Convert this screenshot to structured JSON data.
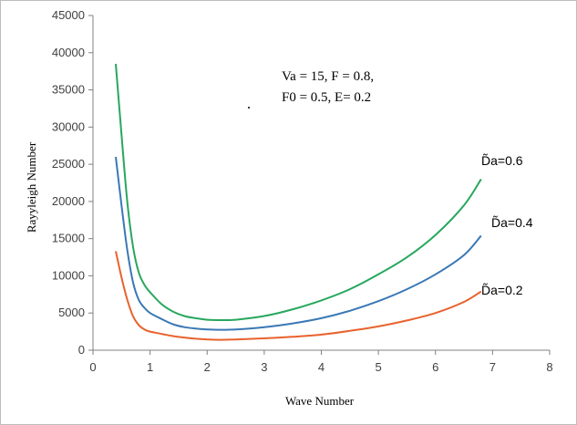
{
  "chart_data": {
    "type": "line",
    "xlabel": "Wave Number",
    "ylabel": "Rayyleigh Number",
    "xlim": [
      0,
      8
    ],
    "ylim": [
      0,
      45000
    ],
    "x_ticks": [
      0,
      1,
      2,
      3,
      4,
      5,
      6,
      7,
      8
    ],
    "y_ticks": [
      0,
      5000,
      10000,
      15000,
      20000,
      25000,
      30000,
      35000,
      40000,
      45000
    ],
    "grid": false,
    "legend": "none",
    "annotation_lines": [
      "Va = 15, F = 0.8,",
      "F0 = 0.5, E= 0.2"
    ],
    "series": [
      {
        "name": "D̃a=0.6",
        "color": "#27a75e",
        "x": [
          0.4,
          0.5,
          0.6,
          0.7,
          0.8,
          0.9,
          1.0,
          1.2,
          1.4,
          1.6,
          1.8,
          2.0,
          2.2,
          2.5,
          3.0,
          3.5,
          4.0,
          4.5,
          5.0,
          5.5,
          6.0,
          6.5,
          6.8
        ],
        "values": [
          38500,
          29000,
          20000,
          14000,
          10500,
          8800,
          7800,
          6200,
          5200,
          4600,
          4300,
          4100,
          4050,
          4100,
          4600,
          5500,
          6700,
          8200,
          10200,
          12500,
          15500,
          19500,
          23000
        ]
      },
      {
        "name": "D̃a=0.4",
        "color": "#3a78b5",
        "x": [
          0.4,
          0.5,
          0.6,
          0.7,
          0.8,
          0.9,
          1.0,
          1.2,
          1.4,
          1.6,
          1.8,
          2.0,
          2.2,
          2.5,
          3.0,
          3.5,
          4.0,
          4.5,
          5.0,
          5.5,
          6.0,
          6.5,
          6.8
        ],
        "values": [
          26000,
          19500,
          13500,
          9200,
          6800,
          5700,
          5000,
          4200,
          3500,
          3100,
          2900,
          2800,
          2750,
          2800,
          3100,
          3600,
          4300,
          5300,
          6600,
          8200,
          10200,
          12800,
          15400
        ]
      },
      {
        "name": "D̃a=0.2",
        "color": "#e8622d",
        "x": [
          0.4,
          0.5,
          0.6,
          0.7,
          0.8,
          0.9,
          1.0,
          1.2,
          1.4,
          1.6,
          1.8,
          2.0,
          2.2,
          2.5,
          3.0,
          3.5,
          4.0,
          4.5,
          5.0,
          5.5,
          6.0,
          6.5,
          6.8
        ],
        "values": [
          13300,
          9800,
          6800,
          4600,
          3400,
          2800,
          2500,
          2200,
          1900,
          1700,
          1550,
          1450,
          1400,
          1450,
          1600,
          1800,
          2100,
          2600,
          3200,
          4000,
          5000,
          6500,
          7900
        ]
      }
    ]
  }
}
